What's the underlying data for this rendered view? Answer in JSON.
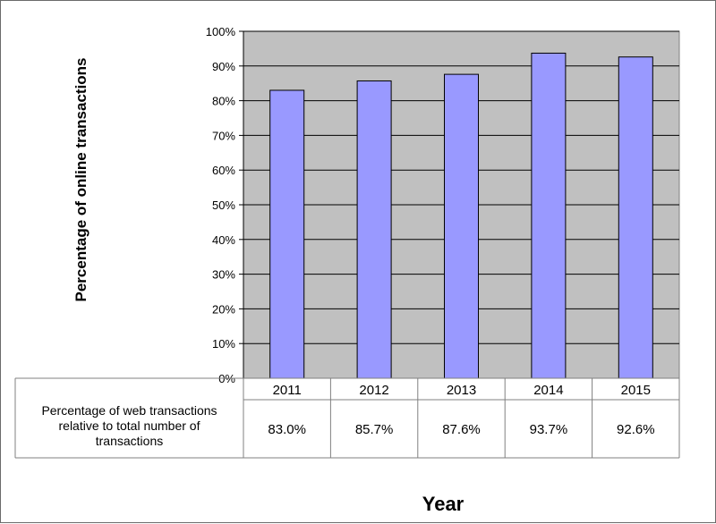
{
  "chart_data": {
    "type": "bar",
    "categories": [
      "2011",
      "2012",
      "2013",
      "2014",
      "2015"
    ],
    "values": [
      83.0,
      85.7,
      87.6,
      93.7,
      92.6
    ],
    "ylabel": "Percentage of online transactions",
    "xlabel": "Year",
    "ylim": [
      0,
      100
    ],
    "yticks": [
      "0%",
      "10%",
      "20%",
      "30%",
      "40%",
      "50%",
      "60%",
      "70%",
      "80%",
      "90%",
      "100%"
    ],
    "grid": true,
    "data_table": {
      "row_label_lines": [
        "Percentage of web transactions",
        "relative to total number of",
        "transactions"
      ],
      "values": [
        "83.0%",
        "85.7%",
        "87.6%",
        "93.7%",
        "92.6%"
      ]
    },
    "colors": {
      "bar_fill": "#9999ff",
      "bar_stroke": "#000000",
      "plot_background": "#c0c0c0",
      "gridline": "#000000"
    }
  }
}
